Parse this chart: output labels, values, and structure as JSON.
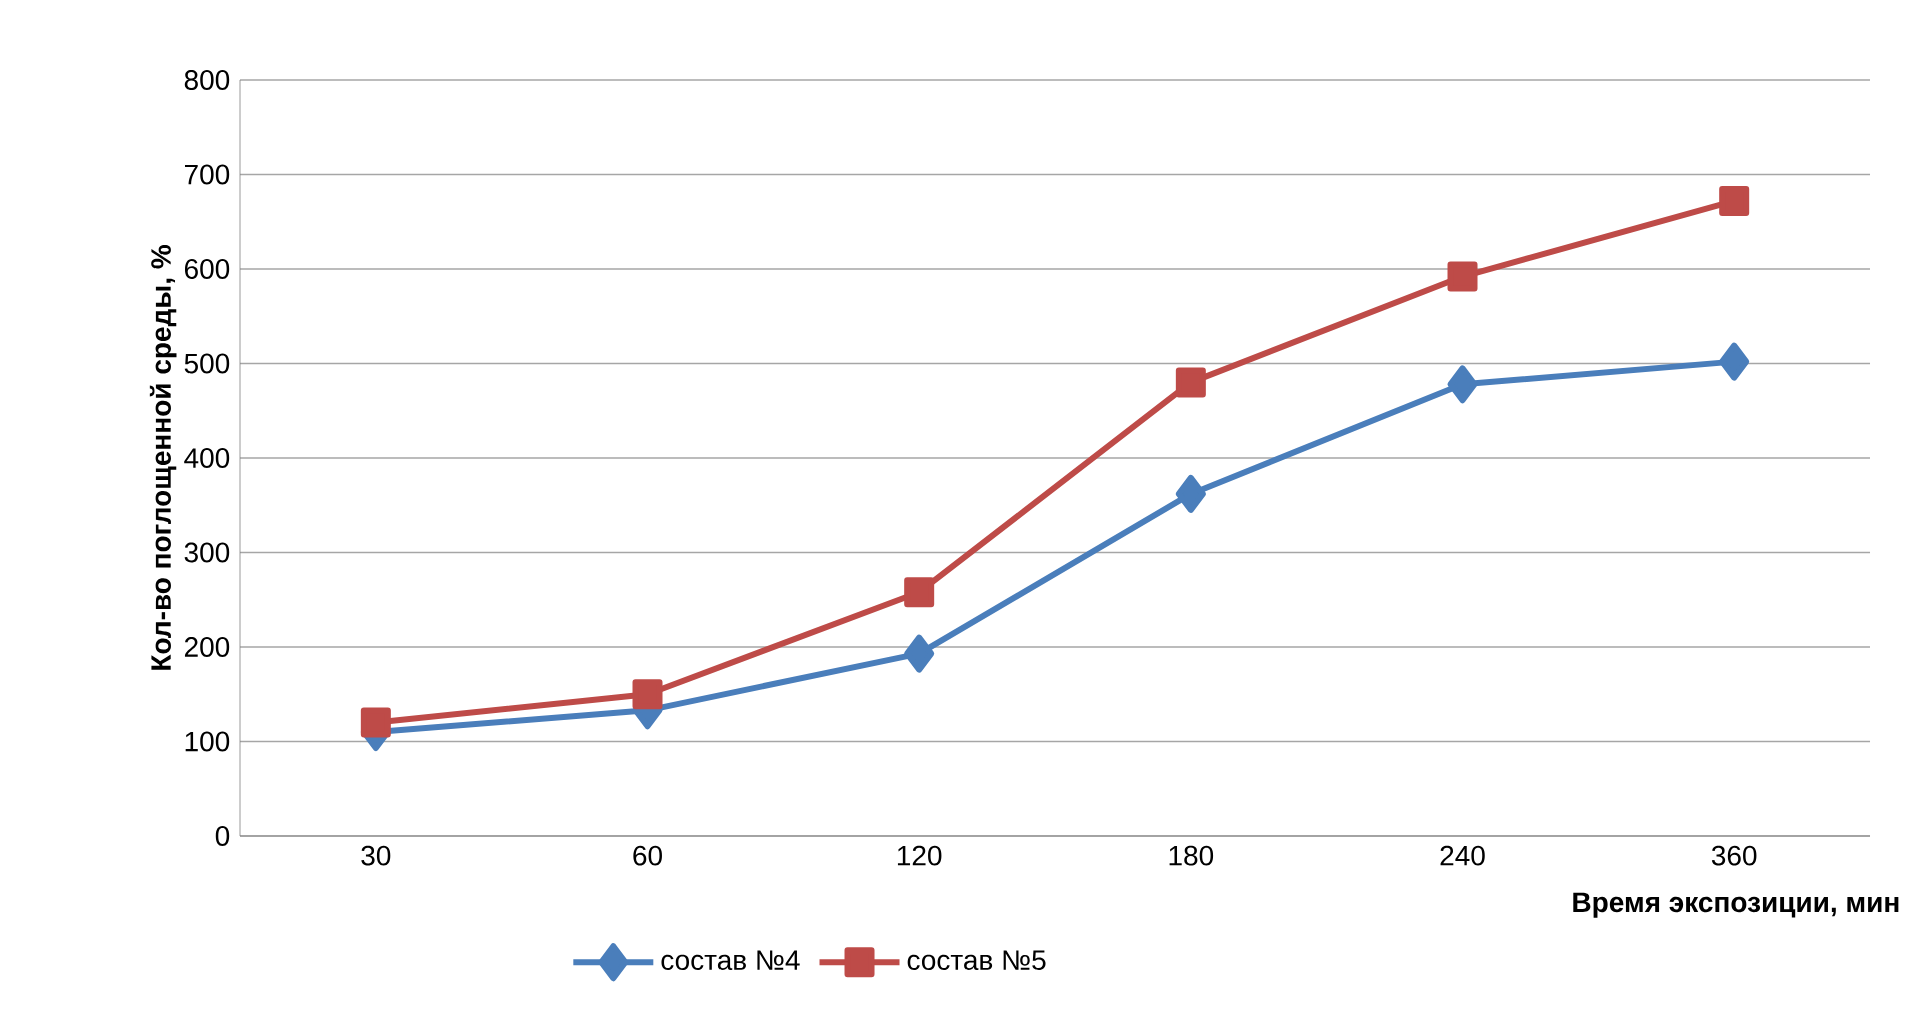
{
  "chart_data": {
    "type": "line",
    "xlabel": "Время экспозиции, мин",
    "ylabel": "Кол-во поглощенной среды, %",
    "categories": [
      "30",
      "60",
      "120",
      "180",
      "240",
      "360"
    ],
    "series": [
      {
        "name": "состав №4",
        "color": "#4a7ebb",
        "marker": "diamond",
        "values": [
          110,
          133,
          193,
          362,
          478,
          502
        ]
      },
      {
        "name": "состав №5",
        "color": "#be4b48",
        "marker": "square",
        "values": [
          120,
          150,
          258,
          480,
          592,
          672
        ]
      }
    ],
    "ylim": [
      0,
      800
    ],
    "yticks": [
      0,
      100,
      200,
      300,
      400,
      500,
      600,
      700,
      800
    ],
    "grid": "y",
    "legend": "bottom"
  }
}
